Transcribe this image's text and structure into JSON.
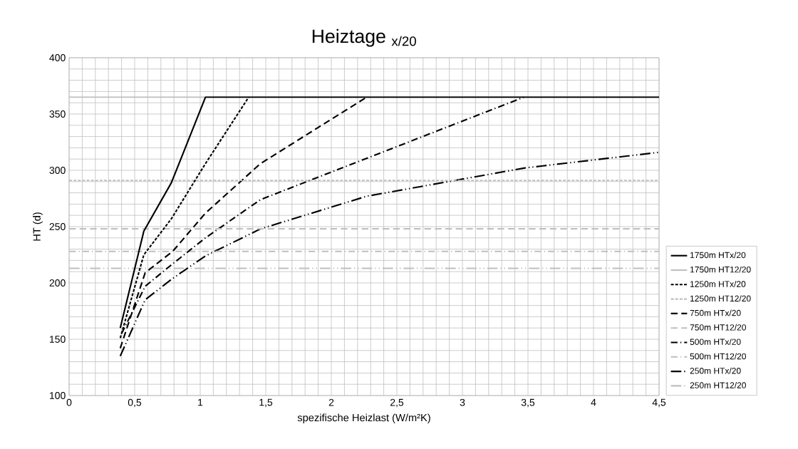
{
  "chart_data": {
    "type": "line",
    "title": "Heiztage $_{x/20}$",
    "xlabel": "spezifische Heizlast (W/m²K)",
    "ylabel": "HT (d)",
    "xlim": [
      0,
      4.5
    ],
    "ylim": [
      100,
      400
    ],
    "xticks": [
      0,
      {
        "value": 0.5,
        "label": "0,5"
      },
      1,
      {
        "value": 1.5,
        "label": "1,5"
      },
      2,
      {
        "value": 2.5,
        "label": "2,5"
      },
      3,
      {
        "value": 3.5,
        "label": "3,5"
      },
      4,
      {
        "value": 4.5,
        "label": "4,5"
      }
    ],
    "yticks": [
      100,
      150,
      200,
      250,
      300,
      350,
      400
    ],
    "grid": true,
    "legend": "right",
    "marker": "none",
    "series": [
      {
        "name": "1750m HTx/20",
        "color": "#000000",
        "line_style": "solid",
        "x": [
          0.39,
          0.57,
          0.78,
          1.04,
          4.5
        ],
        "values": [
          160,
          246,
          289,
          365,
          365
        ]
      },
      {
        "name": "1750m HT12/20",
        "color": "#bfbfbf",
        "line_style": "solid",
        "x": [
          0,
          4.5
        ],
        "values": [
          365,
          365
        ]
      },
      {
        "name": "1250m HTx/20",
        "color": "#000000",
        "line_style": "dotted",
        "x": [
          0.39,
          0.57,
          0.78,
          1.04,
          1.37
        ],
        "values": [
          151,
          225,
          257,
          306,
          365
        ]
      },
      {
        "name": "1250m HT12/20",
        "color": "#bfbfbf",
        "line_style": "dotted",
        "x": [
          0,
          4.5
        ],
        "values": [
          291,
          291
        ]
      },
      {
        "name": "750m HTx/20",
        "color": "#000000",
        "line_style": "dashed",
        "x": [
          0.39,
          0.58,
          0.79,
          1.04,
          1.46,
          2.27
        ],
        "values": [
          142,
          209,
          228,
          262,
          306,
          365
        ]
      },
      {
        "name": "750m HT12/20",
        "color": "#bfbfbf",
        "line_style": "dashed",
        "x": [
          0,
          4.5
        ],
        "values": [
          248,
          248
        ]
      },
      {
        "name": "500m HTx/20",
        "color": "#000000",
        "line_style": "dashdot",
        "x": [
          0.4,
          0.58,
          0.79,
          1.04,
          1.46,
          3.47
        ],
        "values": [
          155,
          197,
          217,
          240,
          274,
          365
        ]
      },
      {
        "name": "500m HT12/20",
        "color": "#bfbfbf",
        "line_style": "dashdot",
        "x": [
          0,
          4.5
        ],
        "values": [
          228,
          228
        ]
      },
      {
        "name": "250m HTx/20",
        "color": "#000000",
        "line_style": "dashdotdot",
        "x": [
          0.39,
          0.58,
          0.79,
          1.04,
          1.46,
          2.27,
          3.47,
          4.5
        ],
        "values": [
          135,
          185,
          204,
          224,
          248,
          277,
          302,
          316
        ]
      },
      {
        "name": "250m HT12/20",
        "color": "#bfbfbf",
        "line_style": "dashdotdot",
        "x": [
          0,
          4.5
        ],
        "values": [
          213,
          213
        ]
      }
    ]
  }
}
